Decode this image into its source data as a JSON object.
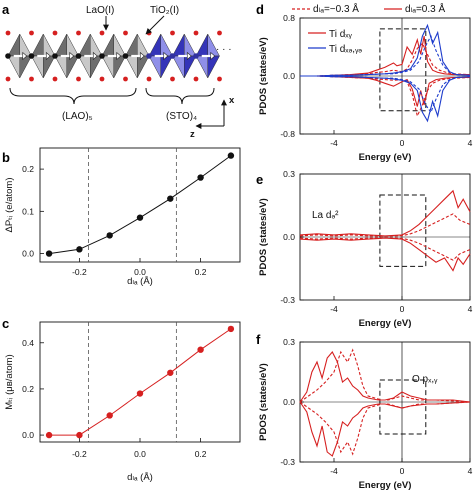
{
  "panels": {
    "a": {
      "label": "a",
      "lao_label": "LaO(I)",
      "tio2_label": "TiO₂(I)",
      "lao_block": "(LAO)₅",
      "sto_block": "(STO)₄",
      "ellipsis": "· · ·",
      "x_axis": "x",
      "z_axis": "z"
    },
    "b": {
      "label": "b"
    },
    "c": {
      "label": "c"
    },
    "d": {
      "label": "d",
      "legend_dashed": "dₗₐ=−0.3 Å",
      "legend_solid": "dₗₐ=0.3 Å",
      "legend_xy": "Ti dₓᵧ",
      "legend_xz": "Ti dₓₔ,ᵧₔ"
    },
    "e": {
      "label": "e",
      "annotation": "La dₔ²"
    },
    "f": {
      "label": "f",
      "annotation": "O pₓ,ᵧ"
    }
  },
  "chart_data": [
    {
      "id": "b",
      "type": "line",
      "ylabel": "ΔPₜᵢ (e/atom)",
      "xlabel": "dₗₐ (Å)",
      "xlim": [
        -0.33,
        0.33
      ],
      "ylim": [
        -0.02,
        0.25
      ],
      "xticks": [
        -0.2,
        0.0,
        0.2
      ],
      "xtick_labels": [
        "-0.2",
        "0.0",
        "0.2"
      ],
      "yticks": [
        0.0,
        0.1,
        0.2
      ],
      "ytick_labels": [
        "0.0",
        "0.1",
        "0.2"
      ],
      "vlines": [
        -0.17,
        0.12
      ],
      "color": "#111111",
      "x": [
        -0.3,
        -0.2,
        -0.1,
        0.0,
        0.1,
        0.2,
        0.3
      ],
      "y": [
        0.0,
        0.01,
        0.043,
        0.085,
        0.13,
        0.18,
        0.232
      ]
    },
    {
      "id": "c",
      "type": "line",
      "ylabel": "Mₜᵢ (μʙ/atom)",
      "xlabel": "dₗₐ (Å)",
      "xlim": [
        -0.33,
        0.33
      ],
      "ylim": [
        -0.03,
        0.49
      ],
      "xticks": [
        -0.2,
        0.0,
        0.2
      ],
      "xtick_labels": [
        "-0.2",
        "0.0",
        "0.2"
      ],
      "yticks": [
        0.0,
        0.2,
        0.4
      ],
      "ytick_labels": [
        "0.0",
        "0.2",
        "0.4"
      ],
      "vlines": [
        -0.17,
        0.12
      ],
      "color": "#d62020",
      "x": [
        -0.3,
        -0.2,
        -0.1,
        0.0,
        0.1,
        0.2,
        0.3
      ],
      "y": [
        0.0,
        0.0,
        0.085,
        0.18,
        0.27,
        0.37,
        0.46
      ]
    },
    {
      "id": "d",
      "type": "line",
      "ylabel": "PDOS (states/eV)",
      "xlabel": "Energy (eV)",
      "xlim": [
        -6,
        4
      ],
      "ylim": [
        -0.8,
        0.8
      ],
      "xticks": [
        -4,
        0,
        4
      ],
      "xtick_labels": [
        "-4",
        "0",
        "4"
      ],
      "yticks": [
        -0.8,
        0.0,
        0.8
      ],
      "ytick_labels": [
        "-0.8",
        "0.0",
        "0.8"
      ],
      "box": {
        "x": [
          -1.3,
          1.4
        ],
        "y": [
          -0.48,
          0.65
        ]
      },
      "series": [
        {
          "name": "Ti dxy (dLa=0.3 Å)",
          "color": "#d62020",
          "dash": false,
          "x": [
            -6,
            -5,
            -4,
            -3,
            -2,
            -1.5,
            -1,
            -0.5,
            -0.3,
            0,
            0.3,
            0.6,
            0.9,
            1.1,
            1.3,
            1.5,
            1.8,
            2.1,
            2.5,
            3,
            4
          ],
          "y": [
            0,
            0,
            0.01,
            0.02,
            0.04,
            0.08,
            0.12,
            0.18,
            0.14,
            0.16,
            0.4,
            0.3,
            0.5,
            0.3,
            0.55,
            0.2,
            0.08,
            0.05,
            0.03,
            0.02,
            0.02
          ]
        },
        {
          "name": "Ti dxy (dLa=0.3 Å) minority",
          "color": "#d62020",
          "dash": false,
          "x": [
            -6,
            -5,
            -4,
            -3,
            -2,
            -1.5,
            -1,
            -0.5,
            0,
            0.3,
            0.6,
            0.9,
            1.1,
            1.3,
            1.6,
            2,
            2.5,
            3,
            4
          ],
          "y": [
            0,
            0,
            -0.01,
            -0.02,
            -0.03,
            -0.06,
            -0.1,
            -0.14,
            -0.08,
            -0.05,
            -0.18,
            -0.42,
            -0.2,
            -0.4,
            -0.1,
            -0.05,
            -0.03,
            -0.02,
            -0.02
          ]
        },
        {
          "name": "Ti dxy (dLa=−0.3 Å)",
          "color": "#d62020",
          "dash": true,
          "x": [
            -6,
            -5,
            -4,
            -3,
            -2,
            -1.5,
            -1,
            -0.5,
            0,
            0.3,
            0.6,
            0.9,
            1.2,
            1.5,
            1.8,
            2.2,
            2.6,
            3,
            4
          ],
          "y": [
            0,
            0,
            0.01,
            0.02,
            0.03,
            0.05,
            0.06,
            0.08,
            0.06,
            0.1,
            0.22,
            0.38,
            0.45,
            0.3,
            0.15,
            0.08,
            0.05,
            0.03,
            0.02
          ]
        },
        {
          "name": "Ti dxy (dLa=−0.3 Å) minority",
          "color": "#d62020",
          "dash": true,
          "x": [
            -6,
            -5,
            -4,
            -3,
            -2,
            -1.5,
            -1,
            -0.5,
            0,
            0.3,
            0.6,
            0.9,
            1.2,
            1.5,
            1.8,
            2.2,
            2.6,
            3,
            4
          ],
          "y": [
            0,
            0,
            -0.01,
            -0.02,
            -0.03,
            -0.04,
            -0.05,
            -0.06,
            -0.05,
            -0.08,
            -0.25,
            -0.55,
            -0.4,
            -0.2,
            -0.1,
            -0.06,
            -0.04,
            -0.03,
            -0.02
          ]
        },
        {
          "name": "Ti dxz,yz (dLa=0.3 Å)",
          "color": "#1e3ccc",
          "dash": false,
          "x": [
            -6,
            -5,
            -4,
            -3,
            -2,
            -1,
            -0.5,
            0,
            0.5,
            0.9,
            1.2,
            1.5,
            1.8,
            2.1,
            2.4,
            2.8,
            3.2,
            4
          ],
          "y": [
            0,
            0,
            0.01,
            0.01,
            0.02,
            0.03,
            0.04,
            0.06,
            0.1,
            0.25,
            0.55,
            0.7,
            0.45,
            0.6,
            0.2,
            0.06,
            0.02,
            0.01
          ]
        },
        {
          "name": "Ti dxz,yz (dLa=0.3 Å) minority",
          "color": "#1e3ccc",
          "dash": false,
          "x": [
            -6,
            -5,
            -4,
            -3,
            -2,
            -1,
            -0.5,
            0,
            0.5,
            0.9,
            1.2,
            1.5,
            1.8,
            2.1,
            2.4,
            2.8,
            3.2,
            4
          ],
          "y": [
            0,
            0,
            -0.01,
            -0.01,
            -0.02,
            -0.03,
            -0.04,
            -0.06,
            -0.1,
            -0.2,
            -0.5,
            -0.62,
            -0.35,
            -0.55,
            -0.2,
            -0.06,
            -0.02,
            -0.01
          ]
        },
        {
          "name": "Ti dxz,yz (dLa=−0.3 Å)",
          "color": "#1e3ccc",
          "dash": true,
          "x": [
            -6,
            -5,
            -4,
            -3,
            -2,
            -1,
            -0.5,
            0,
            0.5,
            1.0,
            1.4,
            1.7,
            2.0,
            2.4,
            2.8,
            3.2,
            4
          ],
          "y": [
            0,
            0,
            0.01,
            0.01,
            0.02,
            0.03,
            0.03,
            0.05,
            0.08,
            0.2,
            0.42,
            0.55,
            0.35,
            0.15,
            0.05,
            0.02,
            0.01
          ]
        },
        {
          "name": "Ti dxz,yz (dLa=−0.3 Å) minority",
          "color": "#1e3ccc",
          "dash": true,
          "x": [
            -6,
            -5,
            -4,
            -3,
            -2,
            -1,
            -0.5,
            0,
            0.5,
            1.0,
            1.4,
            1.7,
            2.0,
            2.4,
            2.8,
            3.2,
            4
          ],
          "y": [
            0,
            0,
            -0.01,
            -0.01,
            -0.02,
            -0.03,
            -0.03,
            -0.05,
            -0.08,
            -0.18,
            -0.4,
            -0.5,
            -0.32,
            -0.12,
            -0.05,
            -0.02,
            -0.01
          ]
        }
      ]
    },
    {
      "id": "e",
      "type": "line",
      "ylabel": "PDOS (states/eV)",
      "xlabel": "Energy (eV)",
      "xlim": [
        -6,
        4
      ],
      "ylim": [
        -0.3,
        0.3
      ],
      "xticks": [
        -4,
        0,
        4
      ],
      "xtick_labels": [
        "-4",
        "0",
        "4"
      ],
      "yticks": [
        -0.3,
        0.0,
        0.3
      ],
      "ytick_labels": [
        "-0.3",
        "0.0",
        "0.3"
      ],
      "box": {
        "x": [
          -1.3,
          1.4
        ],
        "y": [
          -0.14,
          0.2
        ]
      },
      "series": [
        {
          "name": "La dz2 (dLa=0.3 Å)",
          "color": "#d62020",
          "dash": false,
          "x": [
            -6,
            -5,
            -4,
            -3,
            -2,
            -1,
            0,
            0.5,
            1.0,
            1.5,
            2.0,
            2.5,
            3.0,
            3.3,
            3.6,
            4
          ],
          "y": [
            0.01,
            0.015,
            0.01,
            0.015,
            0.01,
            0.005,
            0.01,
            0.03,
            0.06,
            0.1,
            0.14,
            0.18,
            0.22,
            0.14,
            0.18,
            0.12
          ]
        },
        {
          "name": "La dz2 (dLa=0.3 Å) minority",
          "color": "#d62020",
          "dash": false,
          "x": [
            -6,
            -5,
            -4,
            -3,
            -2,
            -1,
            0,
            0.5,
            1.0,
            1.5,
            2.0,
            2.5,
            3.0,
            3.3,
            3.6,
            4
          ],
          "y": [
            -0.01,
            -0.015,
            -0.01,
            -0.015,
            -0.01,
            -0.005,
            -0.01,
            -0.03,
            -0.06,
            -0.09,
            -0.12,
            -0.1,
            -0.16,
            -0.1,
            -0.13,
            -0.08
          ]
        },
        {
          "name": "La dz2 (dLa=−0.3 Å)",
          "color": "#d62020",
          "dash": true,
          "x": [
            -6,
            -5,
            -4,
            -3,
            -2,
            -1,
            0,
            0.5,
            1.0,
            1.5,
            2.0,
            2.5,
            3.0,
            3.4,
            4
          ],
          "y": [
            0.005,
            0.01,
            0.005,
            0.01,
            0.005,
            0.004,
            0.006,
            0.015,
            0.03,
            0.05,
            0.07,
            0.09,
            0.11,
            0.08,
            0.06
          ]
        },
        {
          "name": "La dz2 (dLa=−0.3 Å) minority",
          "color": "#d62020",
          "dash": true,
          "x": [
            -6,
            -5,
            -4,
            -3,
            -2,
            -1,
            0,
            0.5,
            1.0,
            1.5,
            2.0,
            2.5,
            3.0,
            3.4,
            4
          ],
          "y": [
            -0.005,
            -0.01,
            -0.005,
            -0.01,
            -0.005,
            -0.004,
            -0.006,
            -0.015,
            -0.03,
            -0.05,
            -0.07,
            -0.09,
            -0.11,
            -0.08,
            -0.06
          ]
        }
      ]
    },
    {
      "id": "f",
      "type": "line",
      "ylabel": "PDOS (states/eV)",
      "xlabel": "Energy (eV)",
      "xlim": [
        -6,
        4
      ],
      "ylim": [
        -0.3,
        0.3
      ],
      "xticks": [
        -4,
        0,
        4
      ],
      "xtick_labels": [
        "-4",
        "0",
        "4"
      ],
      "yticks": [
        -0.3,
        0.0,
        0.3
      ],
      "ytick_labels": [
        "-0.3",
        "0.0",
        "0.3"
      ],
      "box": {
        "x": [
          -1.3,
          1.4
        ],
        "y": [
          -0.16,
          0.11
        ]
      },
      "series": [
        {
          "name": "O pxy (dLa=0.3 Å)",
          "color": "#d62020",
          "dash": false,
          "x": [
            -6,
            -5.6,
            -5.3,
            -5.0,
            -4.7,
            -4.4,
            -4.1,
            -3.8,
            -3.5,
            -3.2,
            -2.9,
            -2.6,
            -2.3,
            -2.0,
            -1.7,
            -1.4,
            -1,
            -0.5,
            0,
            0.5,
            1,
            1.5,
            2,
            3,
            4
          ],
          "y": [
            0.0,
            0.05,
            0.15,
            0.2,
            0.12,
            0.22,
            0.25,
            0.2,
            0.1,
            0.12,
            0.08,
            0.06,
            0.03,
            0.02,
            0.015,
            0.01,
            0.01,
            0.02,
            0.05,
            0.03,
            0.02,
            0.01,
            0.01,
            0.01,
            0.0
          ]
        },
        {
          "name": "O pxy (dLa=0.3 Å) minority",
          "color": "#d62020",
          "dash": false,
          "x": [
            -6,
            -5.6,
            -5.3,
            -5.0,
            -4.7,
            -4.4,
            -4.1,
            -3.8,
            -3.5,
            -3.2,
            -2.9,
            -2.6,
            -2.3,
            -2.0,
            -1.7,
            -1.4,
            -1,
            -0.5,
            0,
            0.5,
            1,
            1.5,
            2,
            3,
            4
          ],
          "y": [
            0.0,
            -0.05,
            -0.15,
            -0.22,
            -0.12,
            -0.25,
            -0.27,
            -0.2,
            -0.1,
            -0.12,
            -0.08,
            -0.06,
            -0.03,
            -0.02,
            -0.015,
            -0.01,
            -0.01,
            -0.02,
            -0.03,
            -0.02,
            -0.015,
            -0.01,
            -0.01,
            -0.005,
            0.0
          ]
        },
        {
          "name": "O pxy (dLa=−0.3 Å)",
          "color": "#d62020",
          "dash": true,
          "x": [
            -6,
            -5.5,
            -5.0,
            -4.5,
            -4.0,
            -3.6,
            -3.2,
            -2.9,
            -2.6,
            -2.3,
            -2.0,
            -1.6,
            -1.2,
            -0.8,
            -0.4,
            0,
            0.5,
            1,
            1.5,
            2,
            3,
            4
          ],
          "y": [
            0.0,
            0.03,
            0.06,
            0.1,
            0.15,
            0.25,
            0.2,
            0.26,
            0.18,
            0.08,
            0.03,
            0.02,
            0.01,
            0.01,
            0.02,
            0.03,
            0.02,
            0.01,
            0.01,
            0.01,
            0.005,
            0.0
          ]
        },
        {
          "name": "O pxy (dLa=−0.3 Å) minority",
          "color": "#d62020",
          "dash": true,
          "x": [
            -6,
            -5.5,
            -5.0,
            -4.5,
            -4.0,
            -3.6,
            -3.2,
            -2.9,
            -2.6,
            -2.3,
            -2.0,
            -1.6,
            -1.2,
            -0.8,
            -0.4,
            0,
            0.5,
            1,
            1.5,
            2,
            3,
            4
          ],
          "y": [
            0.0,
            -0.03,
            -0.06,
            -0.1,
            -0.15,
            -0.25,
            -0.2,
            -0.26,
            -0.18,
            -0.08,
            -0.03,
            -0.02,
            -0.01,
            -0.01,
            -0.02,
            -0.03,
            -0.02,
            -0.01,
            -0.01,
            -0.01,
            -0.005,
            0.0
          ]
        }
      ]
    }
  ]
}
